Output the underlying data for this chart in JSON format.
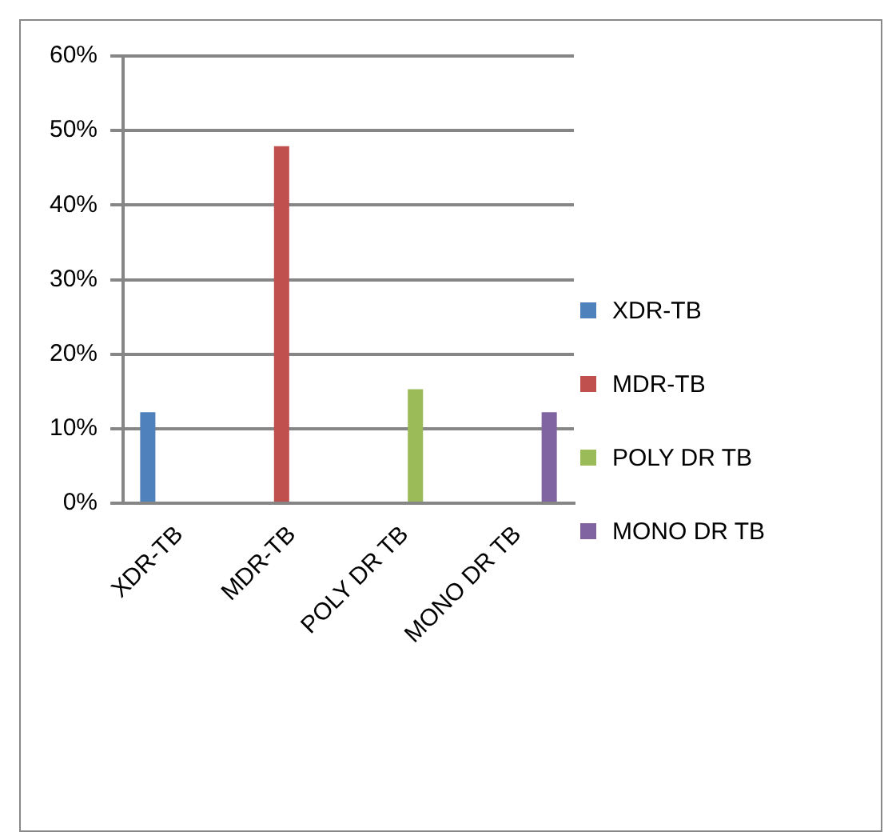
{
  "chart_data": {
    "type": "bar",
    "categories": [
      "XDR-TB",
      "MDR-TB",
      "POLY DR TB",
      "MONO DR TB"
    ],
    "series": [
      {
        "name": "XDR-TB",
        "color": "#4f81bd",
        "values": [
          12.2,
          null,
          null,
          null
        ]
      },
      {
        "name": "MDR-TB",
        "color": "#c0504d",
        "values": [
          null,
          47.9,
          null,
          null
        ]
      },
      {
        "name": "POLY DR TB",
        "color": "#9bbb59",
        "values": [
          null,
          null,
          15.3,
          null
        ]
      },
      {
        "name": "MONO DR TB",
        "color": "#8064a2",
        "values": [
          null,
          null,
          null,
          12.2
        ]
      }
    ],
    "ylim": [
      0,
      60
    ],
    "yticks": [
      {
        "value": 0,
        "label": "0%"
      },
      {
        "value": 10,
        "label": "10%"
      },
      {
        "value": 20,
        "label": "20%"
      },
      {
        "value": 30,
        "label": "30%"
      },
      {
        "value": 40,
        "label": "40%"
      },
      {
        "value": 50,
        "label": "50%"
      },
      {
        "value": 60,
        "label": "60%"
      }
    ],
    "grid": "y",
    "legend": "right"
  }
}
